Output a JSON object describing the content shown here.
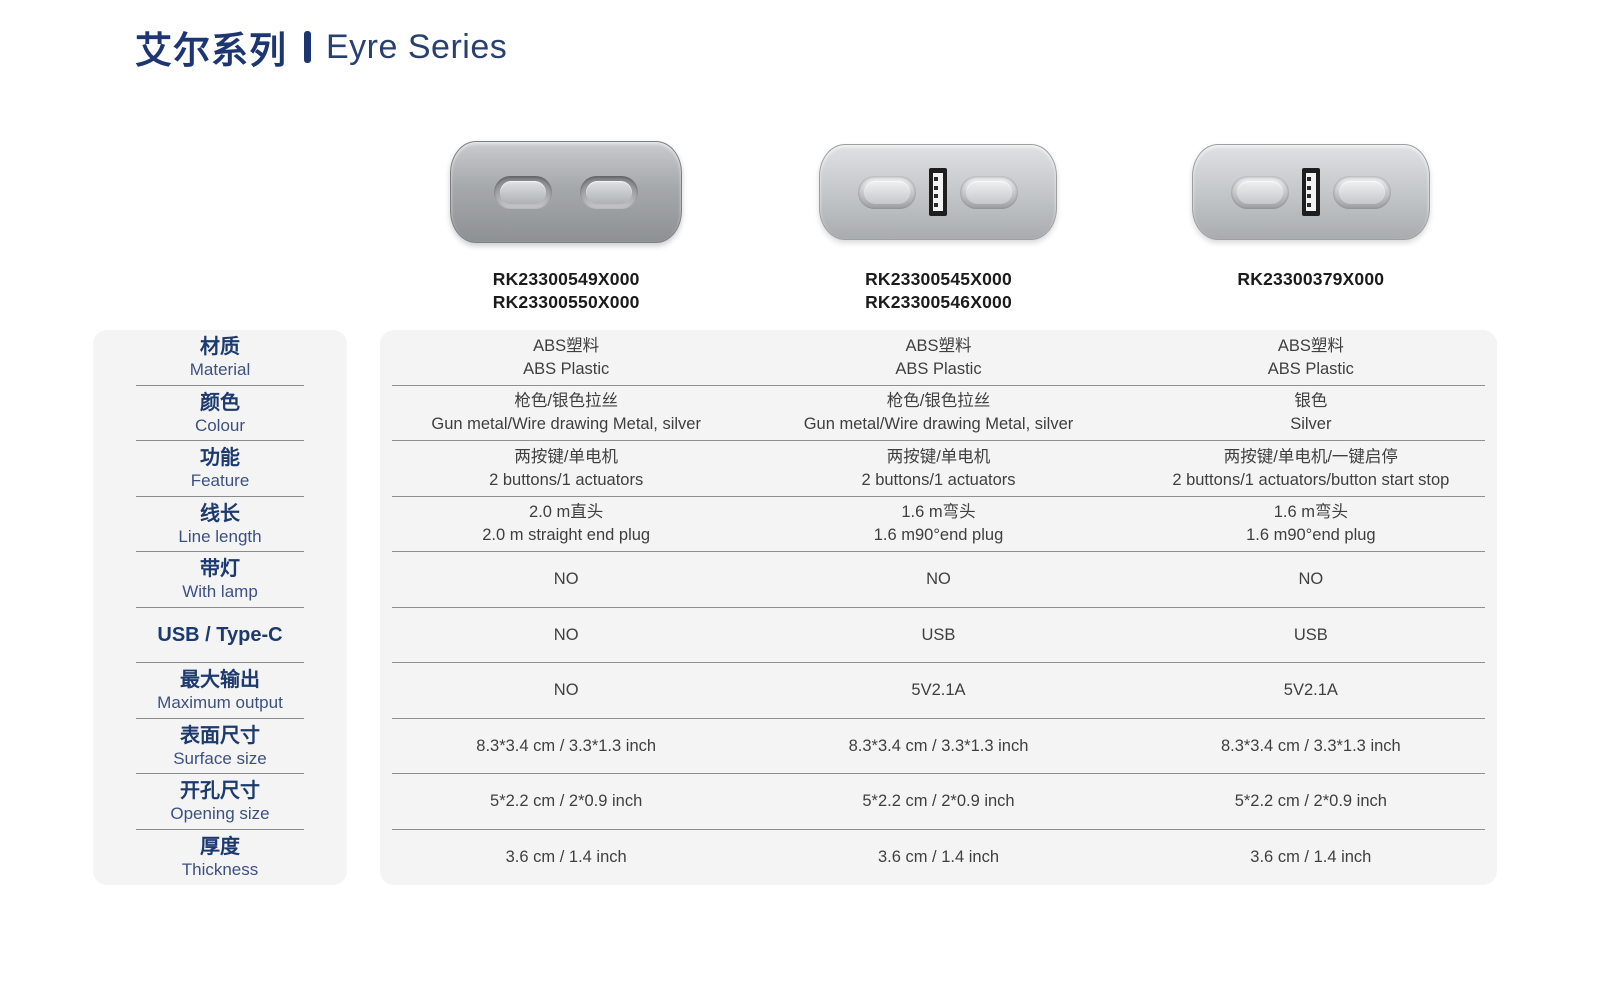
{
  "title": {
    "zh": "艾尔系列",
    "en": "Eyre Series",
    "accent_color": "#1d3671"
  },
  "products": [
    {
      "models": [
        "RK23300549X000",
        "RK23300550X000"
      ],
      "finish": "gunmetal",
      "has_usb": false,
      "buttons": 2
    },
    {
      "models": [
        "RK23300545X000",
        "RK23300546X000"
      ],
      "finish": "silver",
      "has_usb": true,
      "buttons": 2
    },
    {
      "models": [
        "RK23300379X000"
      ],
      "finish": "silver",
      "has_usb": true,
      "buttons": 2
    }
  ],
  "spec_rows": [
    {
      "zh": "材质",
      "en": "Material",
      "values": [
        [
          "ABS塑料",
          "ABS Plastic"
        ],
        [
          "ABS塑料",
          "ABS Plastic"
        ],
        [
          "ABS塑料",
          "ABS Plastic"
        ]
      ]
    },
    {
      "zh": "颜色",
      "en": "Colour",
      "values": [
        [
          "枪色/银色拉丝",
          "Gun metal/Wire drawing Metal, silver"
        ],
        [
          "枪色/银色拉丝",
          "Gun metal/Wire drawing Metal, silver"
        ],
        [
          "银色",
          "Silver"
        ]
      ]
    },
    {
      "zh": "功能",
      "en": "Feature",
      "values": [
        [
          "两按键/单电机",
          "2 buttons/1 actuators"
        ],
        [
          "两按键/单电机",
          "2 buttons/1 actuators"
        ],
        [
          "两按键/单电机/一键启停",
          "2 buttons/1 actuators/button start stop"
        ]
      ]
    },
    {
      "zh": "线长",
      "en": "Line length",
      "values": [
        [
          "2.0 m直头",
          "2.0 m straight end plug"
        ],
        [
          "1.6 m弯头",
          "1.6 m90°end plug"
        ],
        [
          "1.6 m弯头",
          "1.6 m90°end plug"
        ]
      ]
    },
    {
      "zh": "带灯",
      "en": "With lamp",
      "values": [
        [
          "NO"
        ],
        [
          "NO"
        ],
        [
          "NO"
        ]
      ]
    },
    {
      "zh": "USB / Type-C",
      "en": "",
      "values": [
        [
          "NO"
        ],
        [
          "USB"
        ],
        [
          "USB"
        ]
      ]
    },
    {
      "zh": "最大输出",
      "en": "Maximum output",
      "values": [
        [
          "NO"
        ],
        [
          "5V2.1A"
        ],
        [
          "5V2.1A"
        ]
      ]
    },
    {
      "zh": "表面尺寸",
      "en": "Surface size",
      "values": [
        [
          "8.3*3.4 cm / 3.3*1.3 inch"
        ],
        [
          "8.3*3.4 cm / 3.3*1.3 inch"
        ],
        [
          "8.3*3.4 cm / 3.3*1.3 inch"
        ]
      ]
    },
    {
      "zh": "开孔尺寸",
      "en": "Opening size",
      "values": [
        [
          "5*2.2 cm / 2*0.9 inch"
        ],
        [
          "5*2.2 cm / 2*0.9 inch"
        ],
        [
          "5*2.2 cm / 2*0.9 inch"
        ]
      ]
    },
    {
      "zh": "厚度",
      "en": "Thickness",
      "values": [
        [
          "3.6 cm / 1.4 inch"
        ],
        [
          "3.6 cm / 1.4 inch"
        ],
        [
          "3.6 cm / 1.4 inch"
        ]
      ]
    }
  ]
}
